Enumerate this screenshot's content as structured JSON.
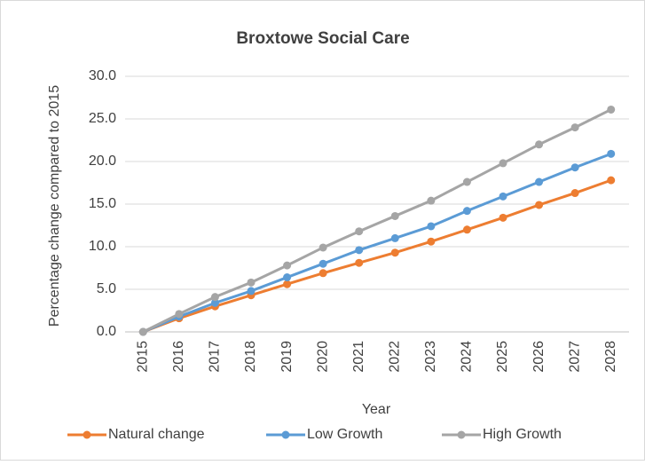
{
  "chart_data": {
    "type": "line",
    "title": "Broxtowe Social Care",
    "x_label": "Year",
    "y_label": "Percentage change compared to 2015",
    "categories": [
      "2015",
      "2016",
      "2017",
      "2018",
      "2019",
      "2020",
      "2021",
      "2022",
      "2023",
      "2024",
      "2025",
      "2026",
      "2027",
      "2028"
    ],
    "series": [
      {
        "name": "Natural change",
        "color": "#ed7d31",
        "values": [
          0,
          1.6,
          3.0,
          4.3,
          5.6,
          6.9,
          8.1,
          9.3,
          10.6,
          12.0,
          13.4,
          14.9,
          16.3,
          17.8
        ]
      },
      {
        "name": "Low Growth",
        "color": "#5b9bd5",
        "values": [
          0,
          1.8,
          3.4,
          4.8,
          6.4,
          8.0,
          9.6,
          11.0,
          12.4,
          14.2,
          15.9,
          17.6,
          19.3,
          20.9
        ]
      },
      {
        "name": "High Growth",
        "color": "#a5a5a5",
        "values": [
          0,
          2.1,
          4.1,
          5.8,
          7.8,
          9.9,
          11.8,
          13.6,
          15.4,
          17.6,
          19.8,
          22.0,
          24.0,
          26.1
        ]
      }
    ],
    "ylim": [
      0,
      30
    ],
    "yticks": [
      {
        "value": 0,
        "label": "0.0"
      },
      {
        "value": 5,
        "label": "5.0"
      },
      {
        "value": 10,
        "label": "10.0"
      },
      {
        "value": 15,
        "label": "15.0"
      },
      {
        "value": 20,
        "label": "20.0"
      },
      {
        "value": 25,
        "label": "25.0"
      },
      {
        "value": 30,
        "label": "30.0"
      }
    ],
    "grid": true,
    "legend": "bottom"
  }
}
